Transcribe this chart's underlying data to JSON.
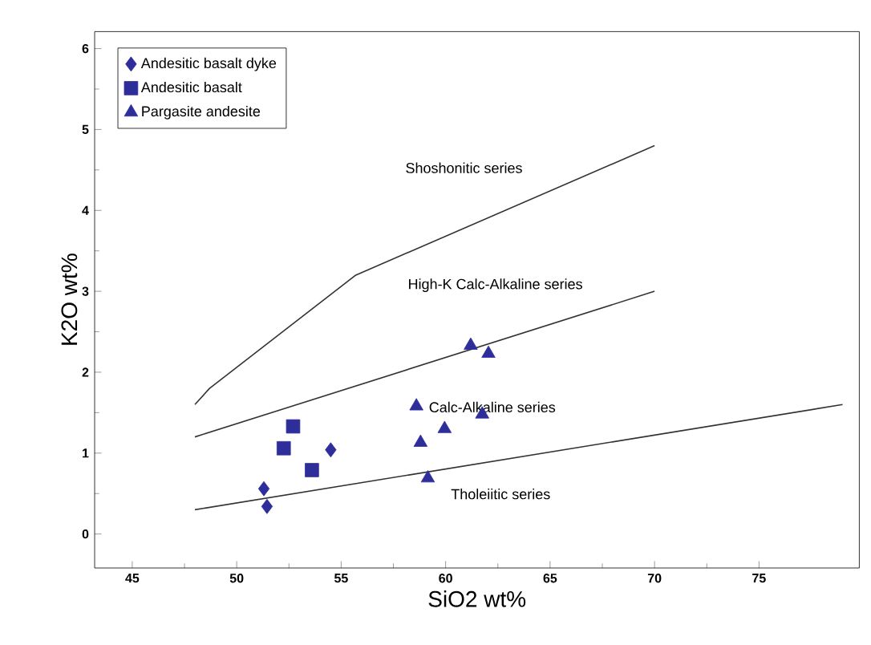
{
  "chart_data": {
    "type": "scatter",
    "xlabel": "SiO2 wt%",
    "ylabel": "K2O wt%",
    "xlim": [
      43.2,
      79.8
    ],
    "ylim": [
      -0.42,
      6.21
    ],
    "xticks": [
      45,
      50,
      55,
      60,
      65,
      70,
      75
    ],
    "yticks": [
      0,
      1,
      2,
      3,
      4,
      5,
      6
    ],
    "grid": false,
    "legend": "top left",
    "series": [
      {
        "name": "Andesitic basalt dyke",
        "color": "#2e2e9a",
        "marker": "diamond",
        "x": [
          51.3,
          51.45,
          54.5
        ],
        "values": [
          0.56,
          0.34,
          1.04
        ]
      },
      {
        "name": "Andesitic basalt",
        "color": "#2e2e9a",
        "marker": "square",
        "x": [
          52.7,
          52.25,
          53.6
        ],
        "values": [
          1.33,
          1.06,
          0.79
        ]
      },
      {
        "name": "Pargasite andesite",
        "color": "#2e2e9a",
        "marker": "triangle",
        "x": [
          61.2,
          62.05,
          58.6,
          58.8,
          59.95,
          61.75,
          59.15
        ],
        "values": [
          2.33,
          2.23,
          1.58,
          1.13,
          1.3,
          1.48,
          0.69
        ]
      },
      {
        "type": "line",
        "color": "#333333",
        "marker": "none",
        "x": [
          48,
          48.7,
          55.7,
          70
        ],
        "values": [
          1.6,
          1.8,
          3.2,
          4.8
        ]
      },
      {
        "type": "line",
        "color": "#333333",
        "marker": "none",
        "x": [
          48,
          70
        ],
        "values": [
          1.2,
          3.0
        ]
      },
      {
        "type": "line",
        "color": "#333333",
        "marker": "none",
        "x": [
          48,
          79
        ],
        "values": [
          0.3,
          1.6
        ]
      }
    ],
    "annotations": [
      "Shoshonitic series",
      "High-K Calc-Alkaline series",
      "Calc-Alkaline series",
      "Tholeiitic series"
    ]
  }
}
